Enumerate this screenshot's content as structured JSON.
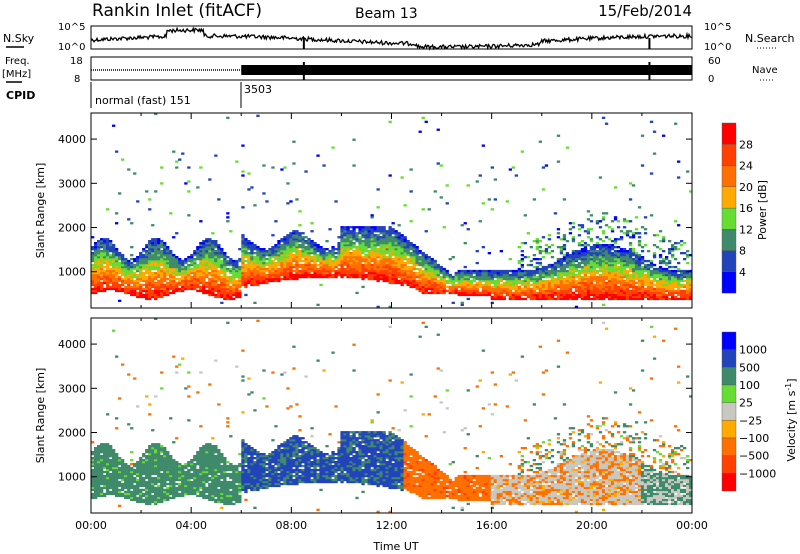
{
  "header": {
    "station": "Rankin Inlet (fitACF)",
    "beam": "Beam 13",
    "date": "15/Feb/2014"
  },
  "noise_panel": {
    "left_label": "N.Sky",
    "right_label": "N.Search",
    "ticks": [
      "10^5",
      "10^0"
    ]
  },
  "freq_panel": {
    "left_label_1": "Freq.",
    "left_label_2": "[MHz]",
    "left_ticks": [
      "18",
      "8"
    ],
    "right_label": "Nave",
    "right_ticks": [
      "60",
      "0"
    ]
  },
  "cpid": {
    "label": "CPID",
    "modes": [
      {
        "name": "normal (fast) 151",
        "start_hour": 0
      },
      {
        "name": "3503",
        "start_hour": 6
      }
    ]
  },
  "chart_data": [
    {
      "type": "heatmap",
      "title": "Power",
      "xlabel": "",
      "ylabel": "Slant Range [km]",
      "xlim": [
        0,
        24
      ],
      "ylim": [
        180,
        4590
      ],
      "yticks": [
        "1000",
        "2000",
        "3000",
        "4000"
      ],
      "colorbar": {
        "label": "Power [dB]",
        "ticks": [
          "4",
          "8",
          "12",
          "16",
          "20",
          "24",
          "28"
        ],
        "colors": [
          "#0000ff",
          "#2244bb",
          "#3f8a6a",
          "#66dd33",
          "#ffaa00",
          "#ff7000",
          "#ff4000",
          "#ff0000"
        ]
      }
    },
    {
      "type": "heatmap",
      "title": "Velocity",
      "xlabel": "Time UT",
      "ylabel": "Slant Range [km]",
      "xlim": [
        0,
        24
      ],
      "ylim": [
        180,
        4590
      ],
      "yticks": [
        "1000",
        "2000",
        "3000",
        "4000"
      ],
      "xticks": [
        "00:00",
        "04:00",
        "08:00",
        "12:00",
        "16:00",
        "20:00",
        "00:00"
      ],
      "colorbar": {
        "label": "Velocity [m s-1]",
        "label_main": "Velocity  [m s",
        "label_sup": "-1",
        "label_end": "]",
        "ticks": [
          "1000",
          "500",
          "100",
          "25",
          "−25",
          "−100",
          "−500",
          "−1000"
        ],
        "colors": [
          "#0000ff",
          "#2244bb",
          "#3f8a6a",
          "#66dd33",
          "#c8c8c0",
          "#ffaa00",
          "#ff7000",
          "#ff4000",
          "#ff0000"
        ]
      }
    }
  ]
}
